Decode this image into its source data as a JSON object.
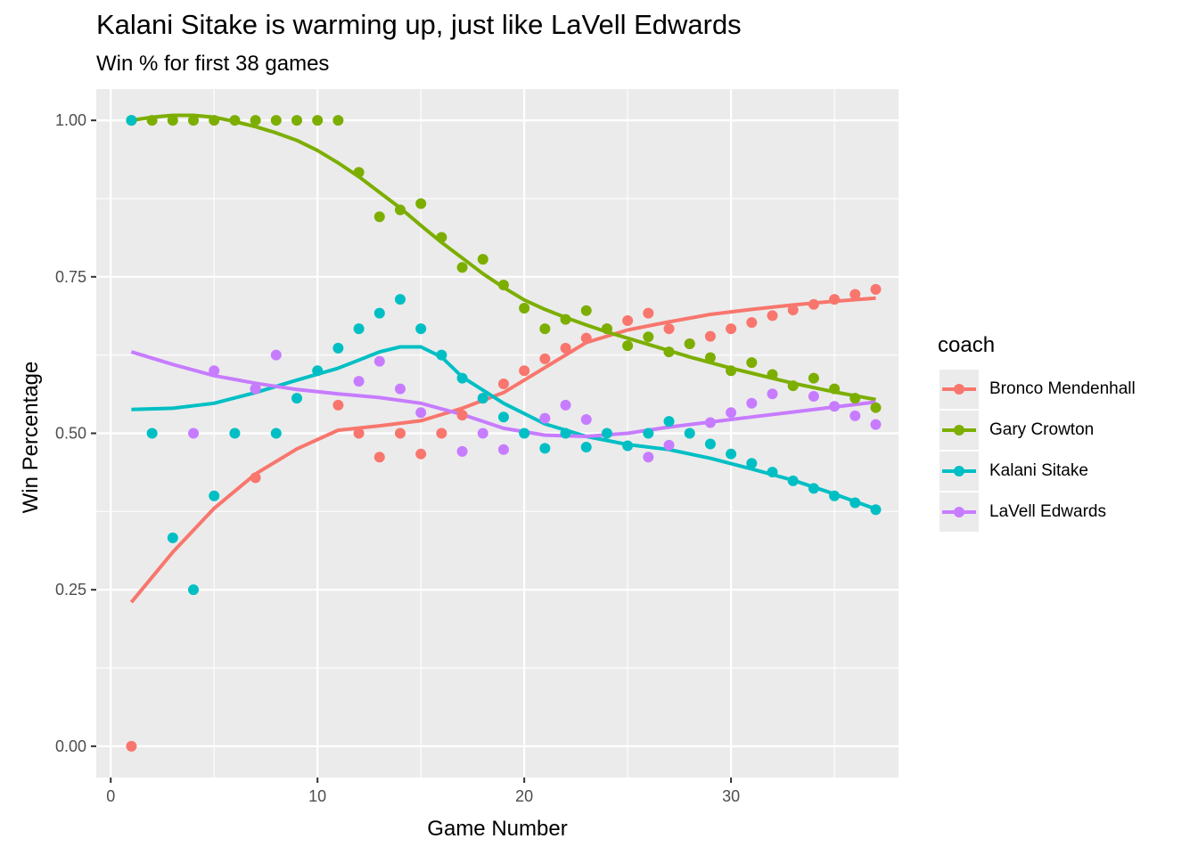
{
  "chart_data": {
    "type": "scatter",
    "title": "Kalani Sitake is warming up, just like LaVell Edwards",
    "subtitle": "Win % for first 38 games",
    "xlabel": "Game Number",
    "ylabel": "Win Percentage",
    "xlim": [
      -0.7,
      38.1
    ],
    "ylim": [
      -0.05,
      1.05
    ],
    "x_ticks": [
      0,
      10,
      20,
      30
    ],
    "x_tick_labels": [
      "0",
      "10",
      "20",
      "30"
    ],
    "y_ticks": [
      0,
      0.25,
      0.5,
      0.75,
      1.0
    ],
    "y_tick_labels": [
      "0.00",
      "0.25",
      "0.50",
      "0.75",
      "1.00"
    ],
    "grid": true,
    "legend_title": "coach",
    "legend_position": "right",
    "series": [
      {
        "name": "Bronco Mendenhall",
        "color": "#F8766D",
        "x": [
          1,
          7,
          11,
          12,
          13,
          14,
          15,
          16,
          17,
          18,
          19,
          20,
          21,
          22,
          23,
          24,
          25,
          26,
          27,
          28,
          29,
          30,
          31,
          32,
          33,
          34,
          35,
          36,
          37
        ],
        "y": [
          0.0,
          0.429,
          0.545,
          0.5,
          0.462,
          0.5,
          0.467,
          0.5,
          0.529,
          0.556,
          0.579,
          0.6,
          0.619,
          0.636,
          0.652,
          0.667,
          0.68,
          0.692,
          0.667,
          0.643,
          0.655,
          0.667,
          0.677,
          0.688,
          0.697,
          0.706,
          0.714,
          0.722,
          0.73
        ],
        "smooth_x": [
          1,
          3,
          5,
          7,
          9,
          11,
          13,
          15,
          17,
          19,
          21,
          23,
          25,
          27,
          29,
          31,
          33,
          35,
          37
        ],
        "smooth_y": [
          0.23,
          0.31,
          0.38,
          0.435,
          0.475,
          0.505,
          0.512,
          0.52,
          0.54,
          0.565,
          0.605,
          0.645,
          0.665,
          0.678,
          0.69,
          0.698,
          0.705,
          0.711,
          0.716
        ]
      },
      {
        "name": "Gary Crowton",
        "color": "#7CAE00",
        "x": [
          1,
          2,
          3,
          4,
          5,
          6,
          7,
          8,
          9,
          10,
          11,
          12,
          13,
          14,
          15,
          16,
          17,
          18,
          19,
          20,
          21,
          22,
          23,
          24,
          25,
          26,
          27,
          28,
          29,
          30,
          31,
          32,
          33,
          34,
          35,
          36,
          37
        ],
        "y": [
          1.0,
          1.0,
          1.0,
          1.0,
          1.0,
          1.0,
          1.0,
          1.0,
          1.0,
          1.0,
          1.0,
          0.917,
          0.846,
          0.857,
          0.867,
          0.813,
          0.765,
          0.778,
          0.737,
          0.7,
          0.667,
          0.682,
          0.696,
          0.667,
          0.64,
          0.654,
          0.63,
          0.643,
          0.621,
          0.6,
          0.613,
          0.594,
          0.576,
          0.588,
          0.571,
          0.556,
          0.541
        ],
        "smooth_x": [
          1,
          2,
          3,
          4,
          5,
          6,
          7,
          8,
          9,
          10,
          11,
          12,
          13,
          14,
          15,
          16,
          17,
          18,
          19,
          20,
          21,
          22,
          23,
          24,
          25,
          26,
          27,
          28,
          29,
          30,
          31,
          32,
          33,
          34,
          35,
          36,
          37
        ],
        "smooth_y": [
          1.0,
          1.005,
          1.008,
          1.008,
          1.005,
          0.998,
          0.99,
          0.98,
          0.968,
          0.952,
          0.932,
          0.91,
          0.885,
          0.86,
          0.832,
          0.805,
          0.78,
          0.755,
          0.733,
          0.713,
          0.698,
          0.685,
          0.673,
          0.662,
          0.652,
          0.642,
          0.632,
          0.622,
          0.613,
          0.604,
          0.596,
          0.588,
          0.58,
          0.573,
          0.566,
          0.56,
          0.554
        ]
      },
      {
        "name": "Kalani Sitake",
        "color": "#00BFC4",
        "x": [
          1,
          2,
          3,
          4,
          5,
          6,
          7,
          8,
          9,
          10,
          11,
          12,
          13,
          14,
          15,
          16,
          17,
          18,
          19,
          20,
          21,
          22,
          23,
          24,
          25,
          26,
          27,
          28,
          29,
          30,
          31,
          32,
          33,
          34,
          35,
          36,
          37
        ],
        "y": [
          1.0,
          0.5,
          0.333,
          0.25,
          0.4,
          0.5,
          0.571,
          0.5,
          0.556,
          0.6,
          0.636,
          0.667,
          0.692,
          0.714,
          0.667,
          0.625,
          0.588,
          0.556,
          0.526,
          0.5,
          0.476,
          0.5,
          0.478,
          0.5,
          0.48,
          0.5,
          0.519,
          0.5,
          0.483,
          0.467,
          0.452,
          0.438,
          0.424,
          0.412,
          0.4,
          0.389,
          0.378
        ],
        "smooth_x": [
          1,
          3,
          5,
          7,
          9,
          11,
          12,
          13,
          14,
          15,
          16,
          17,
          19,
          21,
          23,
          25,
          27,
          29,
          31,
          33,
          35,
          37
        ],
        "smooth_y": [
          0.538,
          0.54,
          0.548,
          0.565,
          0.585,
          0.604,
          0.617,
          0.63,
          0.638,
          0.638,
          0.622,
          0.59,
          0.548,
          0.515,
          0.495,
          0.482,
          0.474,
          0.46,
          0.443,
          0.425,
          0.403,
          0.379
        ]
      },
      {
        "name": "LaVell Edwards",
        "color": "#C77CFF",
        "x": [
          4,
          5,
          7,
          8,
          12,
          13,
          14,
          15,
          17,
          18,
          19,
          21,
          22,
          23,
          26,
          27,
          29,
          30,
          31,
          32,
          34,
          35,
          36,
          37
        ],
        "y": [
          0.5,
          0.6,
          0.571,
          0.625,
          0.583,
          0.615,
          0.571,
          0.533,
          0.471,
          0.5,
          0.474,
          0.524,
          0.545,
          0.522,
          0.462,
          0.481,
          0.517,
          0.533,
          0.548,
          0.563,
          0.559,
          0.543,
          0.528,
          0.514
        ],
        "smooth_x": [
          1,
          3,
          5,
          7,
          9,
          11,
          13,
          15,
          17,
          19,
          21,
          23,
          25,
          27,
          29,
          31,
          33,
          35,
          37
        ],
        "smooth_y": [
          0.63,
          0.61,
          0.592,
          0.58,
          0.57,
          0.563,
          0.557,
          0.548,
          0.53,
          0.508,
          0.497,
          0.495,
          0.5,
          0.51,
          0.518,
          0.526,
          0.534,
          0.542,
          0.55
        ]
      }
    ]
  }
}
